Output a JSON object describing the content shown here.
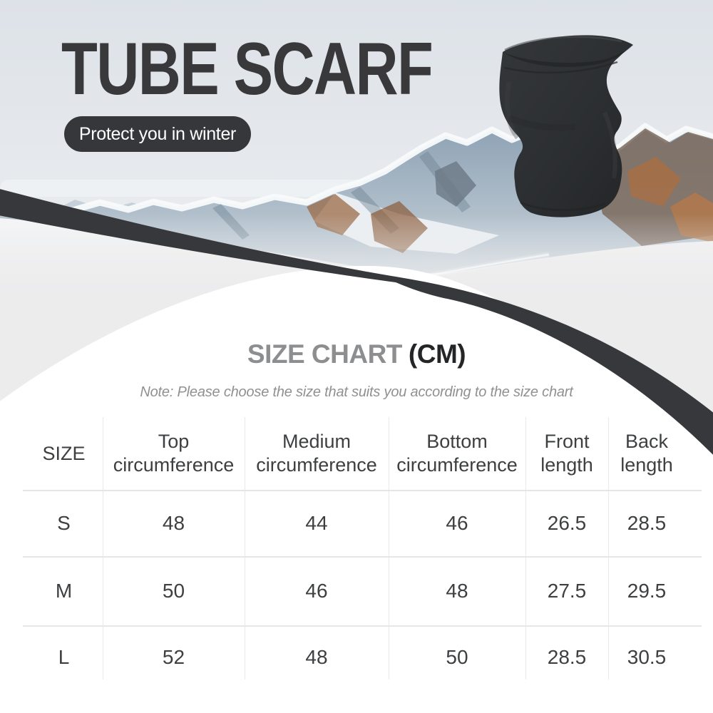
{
  "hero": {
    "title": "TUBE SCARF",
    "badge": "Protect you in winter",
    "background_photo": "snow-mountains-photo",
    "product_photo": "black-tube-scarf"
  },
  "size_chart": {
    "heading_main": "SIZE CHART",
    "heading_unit": "(CM)",
    "note": "Note: Please choose the size that suits you according to the size chart",
    "columns": [
      "SIZE",
      "Top circumference",
      "Medium circumference",
      "Bottom circumference",
      "Front length",
      "Back length"
    ],
    "rows": [
      {
        "size": "S",
        "values": [
          "48",
          "44",
          "46",
          "26.5",
          "28.5"
        ]
      },
      {
        "size": "M",
        "values": [
          "50",
          "46",
          "48",
          "27.5",
          "29.5"
        ]
      },
      {
        "size": "L",
        "values": [
          "52",
          "48",
          "50",
          "28.5",
          "30.5"
        ]
      }
    ]
  },
  "chart_data": {
    "type": "table",
    "columns": [
      "SIZE",
      "Top circumference",
      "Medium circumference",
      "Bottom circumference",
      "Front length",
      "Back length"
    ],
    "rows": [
      [
        "S",
        48,
        44,
        46,
        26.5,
        28.5
      ],
      [
        "M",
        50,
        46,
        48,
        27.5,
        29.5
      ],
      [
        "L",
        52,
        48,
        50,
        28.5,
        30.5
      ]
    ]
  },
  "colors": {
    "charcoal_accent": "#36383b",
    "title_text": "#39393b",
    "heading_gray": "#8d8e90",
    "heading_dark": "#242527",
    "page_gray": "#ececed",
    "white": "#ffffff"
  }
}
